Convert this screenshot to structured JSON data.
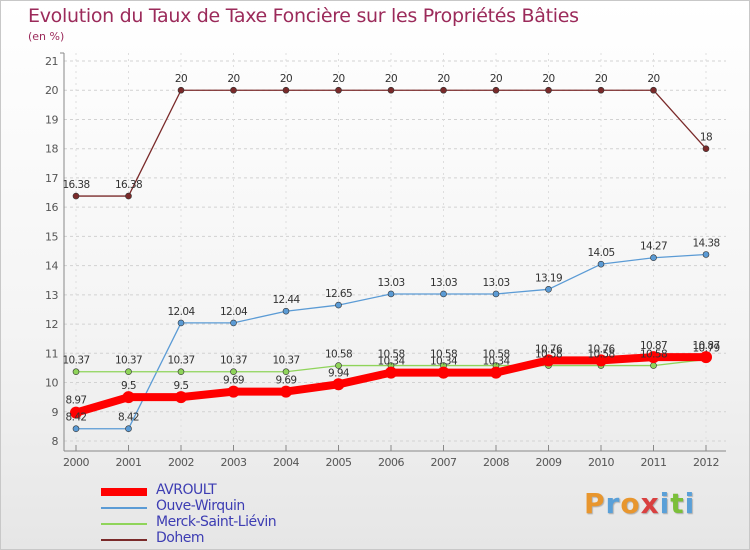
{
  "header": {
    "title": "Evolution du Taux de Taxe Foncière sur les Propriétés Bâties",
    "subtitle": "(en %)"
  },
  "logo": {
    "text": "Proxiti",
    "letter_colors": [
      "#e8962e",
      "#5aa0d8",
      "#e8962e",
      "#d94040",
      "#5aa0d8",
      "#7bbf3a",
      "#5aa0d8"
    ]
  },
  "chart_data": {
    "type": "line",
    "x": [
      "2000",
      "2001",
      "2002",
      "2003",
      "2004",
      "2005",
      "2006",
      "2007",
      "2008",
      "2009",
      "2010",
      "2011",
      "2012"
    ],
    "ylim": [
      8,
      21
    ],
    "yticks": [
      "8",
      "9",
      "10",
      "11",
      "12",
      "13",
      "14",
      "15",
      "16",
      "17",
      "18",
      "19",
      "20",
      "21"
    ],
    "grid": true,
    "legend": "bottom-left",
    "series": [
      {
        "name": "AVROULT",
        "color": "#ff0000",
        "values": [
          8.97,
          9.5,
          9.5,
          9.69,
          9.69,
          9.94,
          10.34,
          10.34,
          10.34,
          10.76,
          10.76,
          10.87,
          10.87
        ],
        "labels": [
          "8.97",
          "9.5",
          "9.5",
          "9.69",
          "9.69",
          "9.94",
          "10.34",
          "10.34",
          "10.34",
          "10.76",
          "10.76",
          "10.87",
          "10.87"
        ]
      },
      {
        "name": "Ouve-Wirquin",
        "color": "#5b9bd5",
        "values": [
          8.42,
          8.42,
          12.04,
          12.04,
          12.44,
          12.65,
          13.03,
          13.03,
          13.03,
          13.19,
          14.05,
          14.27,
          14.38
        ],
        "labels": [
          "8.42",
          "8.42",
          "12.04",
          "12.04",
          "12.44",
          "12.65",
          "13.03",
          "13.03",
          "13.03",
          "13.19",
          "14.05",
          "14.27",
          "14.38"
        ]
      },
      {
        "name": "Merck-Saint-Liévin",
        "color": "#8fd45a",
        "values": [
          10.37,
          10.37,
          10.37,
          10.37,
          10.37,
          10.58,
          10.58,
          10.58,
          10.58,
          10.58,
          10.58,
          10.58,
          10.79
        ],
        "labels": [
          "10.37",
          "10.37",
          "10.37",
          "10.37",
          "10.37",
          "10.58",
          "10.58",
          "10.58",
          "10.58",
          "10.58",
          "10.58",
          "10.58",
          "10.79"
        ]
      },
      {
        "name": "Dohem",
        "color": "#7a2a2a",
        "values": [
          16.38,
          16.38,
          20,
          20,
          20,
          20,
          20,
          20,
          20,
          20,
          20,
          20,
          18
        ],
        "labels": [
          "16.38",
          "16.38",
          "20",
          "20",
          "20",
          "20",
          "20",
          "20",
          "20",
          "20",
          "20",
          "20",
          "18"
        ]
      }
    ]
  }
}
